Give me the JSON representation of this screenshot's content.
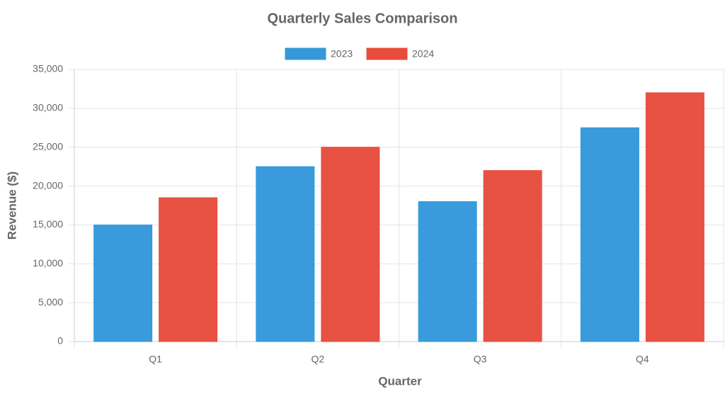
{
  "chart_data": {
    "type": "bar",
    "title": "Quarterly Sales Comparison",
    "x_label": "Quarter",
    "y_label": "Revenue ($)",
    "categories": [
      "Q1",
      "Q2",
      "Q3",
      "Q4"
    ],
    "series": [
      {
        "name": "2023",
        "color": "#3498db",
        "values": [
          15000,
          22500,
          18000,
          27500
        ]
      },
      {
        "name": "2024",
        "color": "#e74c3c",
        "values": [
          18500,
          25000,
          22000,
          32000
        ]
      }
    ],
    "ylim": [
      0,
      35000
    ],
    "yticks": [
      0,
      {
        "value": 5000,
        "label": "5,000"
      },
      {
        "value": 10000,
        "label": "10,000"
      },
      {
        "value": 15000,
        "label": "15,000"
      },
      {
        "value": 20000,
        "label": "20,000"
      },
      {
        "value": 25000,
        "label": "25,000"
      },
      {
        "value": 30000,
        "label": "30,000"
      },
      {
        "value": 35000,
        "label": "35,000"
      }
    ],
    "grid": true,
    "legend": "top"
  }
}
